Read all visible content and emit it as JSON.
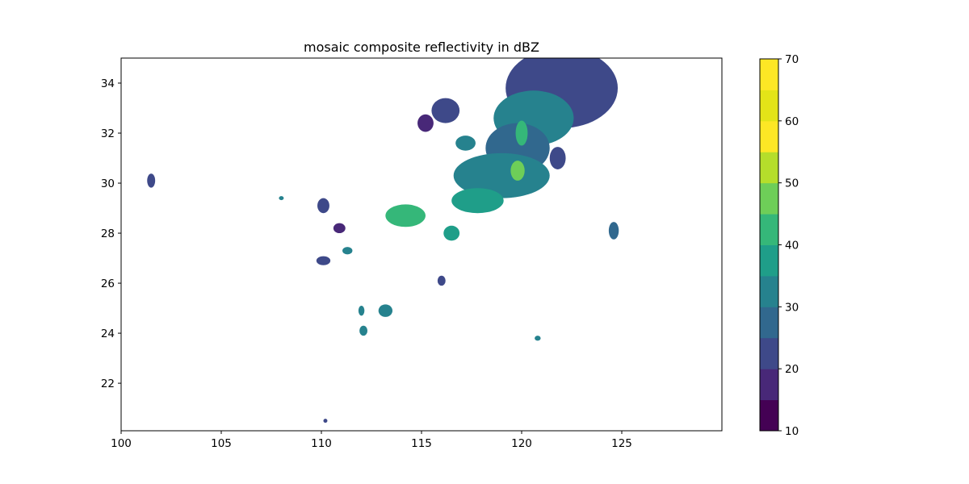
{
  "chart_data": {
    "type": "heatmap",
    "subtype": "filled-contour map",
    "title": "mosaic composite reflectivity in dBZ",
    "xlabel": "",
    "ylabel": "",
    "xlim": [
      100,
      130
    ],
    "ylim": [
      20.1,
      35
    ],
    "xticks": [
      100,
      105,
      110,
      115,
      120,
      125
    ],
    "yticks": [
      22,
      24,
      26,
      28,
      30,
      32,
      34
    ],
    "grid": false,
    "colormap": "viridis",
    "colorbar": {
      "levels": [
        10,
        15,
        20,
        25,
        30,
        35,
        40,
        45,
        50,
        55,
        60,
        65,
        70
      ],
      "ticks": [
        10,
        20,
        30,
        40,
        50,
        60,
        70
      ],
      "colors": [
        "#440154",
        "#482878",
        "#3e4989",
        "#31688e",
        "#26828e",
        "#1f9e89",
        "#35b779",
        "#6ece58",
        "#b5de2b",
        "#fde725",
        "#e3e418",
        "#fde725"
      ]
    },
    "cells": [
      {
        "lon": 122.0,
        "lat": 33.8,
        "rx": 2.8,
        "ry": 1.6,
        "dbz": 22
      },
      {
        "lon": 120.6,
        "lat": 32.6,
        "rx": 2.0,
        "ry": 1.1,
        "dbz": 30
      },
      {
        "lon": 119.8,
        "lat": 31.4,
        "rx": 1.6,
        "ry": 1.0,
        "dbz": 28
      },
      {
        "lon": 119.0,
        "lat": 30.3,
        "rx": 2.4,
        "ry": 0.9,
        "dbz": 32
      },
      {
        "lon": 117.8,
        "lat": 29.3,
        "rx": 1.3,
        "ry": 0.5,
        "dbz": 36
      },
      {
        "lon": 116.2,
        "lat": 32.9,
        "rx": 0.7,
        "ry": 0.5,
        "dbz": 22
      },
      {
        "lon": 115.2,
        "lat": 32.4,
        "rx": 0.4,
        "ry": 0.35,
        "dbz": 18
      },
      {
        "lon": 117.2,
        "lat": 31.6,
        "rx": 0.5,
        "ry": 0.3,
        "dbz": 34
      },
      {
        "lon": 114.2,
        "lat": 28.7,
        "rx": 1.0,
        "ry": 0.45,
        "dbz": 40
      },
      {
        "lon": 116.5,
        "lat": 28.0,
        "rx": 0.4,
        "ry": 0.3,
        "dbz": 38
      },
      {
        "lon": 124.6,
        "lat": 28.1,
        "rx": 0.25,
        "ry": 0.35,
        "dbz": 26
      },
      {
        "lon": 121.8,
        "lat": 31.0,
        "rx": 0.4,
        "ry": 0.45,
        "dbz": 20
      },
      {
        "lon": 110.1,
        "lat": 29.1,
        "rx": 0.3,
        "ry": 0.3,
        "dbz": 20
      },
      {
        "lon": 110.9,
        "lat": 28.2,
        "rx": 0.3,
        "ry": 0.2,
        "dbz": 18
      },
      {
        "lon": 110.1,
        "lat": 26.9,
        "rx": 0.35,
        "ry": 0.18,
        "dbz": 24
      },
      {
        "lon": 111.3,
        "lat": 27.3,
        "rx": 0.25,
        "ry": 0.15,
        "dbz": 30
      },
      {
        "lon": 101.5,
        "lat": 30.1,
        "rx": 0.2,
        "ry": 0.28,
        "dbz": 22
      },
      {
        "lon": 113.2,
        "lat": 24.9,
        "rx": 0.35,
        "ry": 0.25,
        "dbz": 34
      },
      {
        "lon": 112.1,
        "lat": 24.1,
        "rx": 0.2,
        "ry": 0.2,
        "dbz": 30
      },
      {
        "lon": 112.0,
        "lat": 24.9,
        "rx": 0.15,
        "ry": 0.2,
        "dbz": 32
      },
      {
        "lon": 116.0,
        "lat": 26.1,
        "rx": 0.2,
        "ry": 0.2,
        "dbz": 22
      },
      {
        "lon": 120.8,
        "lat": 23.8,
        "rx": 0.15,
        "ry": 0.1,
        "dbz": 34
      },
      {
        "lon": 110.2,
        "lat": 20.5,
        "rx": 0.1,
        "ry": 0.08,
        "dbz": 22
      },
      {
        "lon": 108.0,
        "lat": 29.4,
        "rx": 0.12,
        "ry": 0.08,
        "dbz": 34
      },
      {
        "lon": 119.8,
        "lat": 30.5,
        "rx": 0.35,
        "ry": 0.4,
        "dbz": 48
      },
      {
        "lon": 120.0,
        "lat": 32.0,
        "rx": 0.3,
        "ry": 0.5,
        "dbz": 42
      }
    ]
  }
}
